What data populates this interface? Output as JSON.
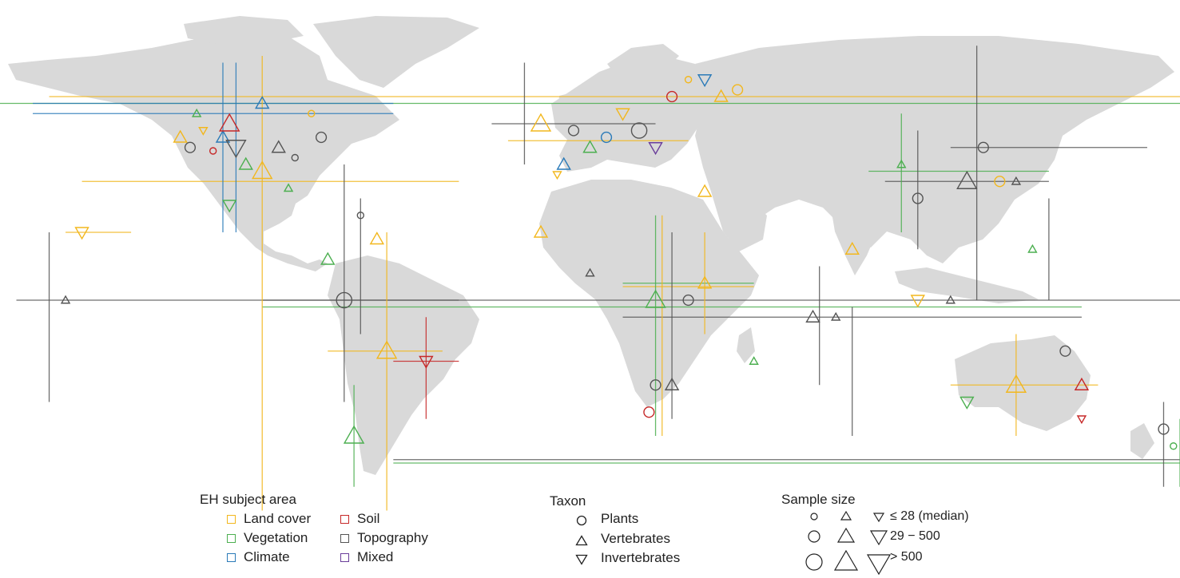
{
  "legend_subject": {
    "title": "EH subject area",
    "items": [
      {
        "label": "Land cover",
        "color": "#f2b71d"
      },
      {
        "label": "Vegetation",
        "color": "#4caf50"
      },
      {
        "label": "Climate",
        "color": "#2a7ab8"
      },
      {
        "label": "Soil",
        "color": "#c62828"
      },
      {
        "label": "Topography",
        "color": "#555555"
      },
      {
        "label": "Mixed",
        "color": "#6a3d9a"
      }
    ]
  },
  "legend_taxon": {
    "title": "Taxon",
    "items": [
      {
        "label": "Plants",
        "icon": "circle-icon"
      },
      {
        "label": "Vertebrates",
        "icon": "triangle-up-icon"
      },
      {
        "label": "Invertebrates",
        "icon": "triangle-down-icon"
      }
    ]
  },
  "legend_sample": {
    "title": "Sample size",
    "rows": [
      {
        "label": "≤ 28 (median)",
        "scale": 1
      },
      {
        "label": "29 − 500",
        "scale": 2
      },
      {
        "label": "> 500",
        "scale": 3
      }
    ]
  },
  "study_points": [
    {
      "lon": -125,
      "lat": 48,
      "taxon": "vertebrate",
      "subject": "Land cover",
      "size": 2
    },
    {
      "lon": -122,
      "lat": 45,
      "taxon": "plant",
      "subject": "Topography",
      "size": 2
    },
    {
      "lon": -120,
      "lat": 55,
      "taxon": "vertebrate",
      "subject": "Vegetation",
      "size": 1
    },
    {
      "lon": -118,
      "lat": 50,
      "taxon": "invertebrate",
      "subject": "Land cover",
      "size": 1
    },
    {
      "lon": -115,
      "lat": 44,
      "taxon": "plant",
      "subject": "Soil",
      "size": 1
    },
    {
      "lon": -112,
      "lat": 48,
      "taxon": "vertebrate",
      "subject": "Climate",
      "size": 2
    },
    {
      "lon": -110,
      "lat": 52,
      "taxon": "vertebrate",
      "subject": "Soil",
      "size": 3
    },
    {
      "lon": -108,
      "lat": 45,
      "taxon": "invertebrate",
      "subject": "Topography",
      "size": 3
    },
    {
      "lon": -105,
      "lat": 40,
      "taxon": "vertebrate",
      "subject": "Vegetation",
      "size": 2
    },
    {
      "lon": -100,
      "lat": 38,
      "taxon": "vertebrate",
      "subject": "Land cover",
      "size": 3
    },
    {
      "lon": -95,
      "lat": 45,
      "taxon": "vertebrate",
      "subject": "Topography",
      "size": 2
    },
    {
      "lon": -90,
      "lat": 42,
      "taxon": "plant",
      "subject": "Topography",
      "size": 1
    },
    {
      "lon": -85,
      "lat": 55,
      "taxon": "plant",
      "subject": "Land cover",
      "size": 1
    },
    {
      "lon": -82,
      "lat": 48,
      "taxon": "plant",
      "subject": "Topography",
      "size": 2
    },
    {
      "lon": -110,
      "lat": 28,
      "taxon": "invertebrate",
      "subject": "Vegetation",
      "size": 2
    },
    {
      "lon": -155,
      "lat": 20,
      "taxon": "invertebrate",
      "subject": "Land cover",
      "size": 2
    },
    {
      "lon": -160,
      "lat": 0,
      "taxon": "vertebrate",
      "subject": "Topography",
      "size": 1
    },
    {
      "lon": -80,
      "lat": 12,
      "taxon": "vertebrate",
      "subject": "Vegetation",
      "size": 2
    },
    {
      "lon": -75,
      "lat": 0,
      "taxon": "plant",
      "subject": "Topography",
      "size": 3
    },
    {
      "lon": -70,
      "lat": 25,
      "taxon": "plant",
      "subject": "Topography",
      "size": 1
    },
    {
      "lon": -65,
      "lat": 18,
      "taxon": "vertebrate",
      "subject": "Land cover",
      "size": 2
    },
    {
      "lon": -62,
      "lat": -15,
      "taxon": "vertebrate",
      "subject": "Land cover",
      "size": 3
    },
    {
      "lon": -50,
      "lat": -18,
      "taxon": "invertebrate",
      "subject": "Soil",
      "size": 2
    },
    {
      "lon": -72,
      "lat": -40,
      "taxon": "vertebrate",
      "subject": "Vegetation",
      "size": 3
    },
    {
      "lon": -15,
      "lat": 52,
      "taxon": "vertebrate",
      "subject": "Land cover",
      "size": 3
    },
    {
      "lon": -5,
      "lat": 50,
      "taxon": "plant",
      "subject": "Topography",
      "size": 2
    },
    {
      "lon": 0,
      "lat": 45,
      "taxon": "vertebrate",
      "subject": "Vegetation",
      "size": 2
    },
    {
      "lon": 5,
      "lat": 48,
      "taxon": "plant",
      "subject": "Climate",
      "size": 2
    },
    {
      "lon": 10,
      "lat": 55,
      "taxon": "invertebrate",
      "subject": "Land cover",
      "size": 2
    },
    {
      "lon": 15,
      "lat": 50,
      "taxon": "plant",
      "subject": "Topography",
      "size": 3
    },
    {
      "lon": 20,
      "lat": 45,
      "taxon": "invertebrate",
      "subject": "Mixed",
      "size": 2
    },
    {
      "lon": 25,
      "lat": 60,
      "taxon": "plant",
      "subject": "Soil",
      "size": 2
    },
    {
      "lon": 30,
      "lat": 65,
      "taxon": "plant",
      "subject": "Land cover",
      "size": 1
    },
    {
      "lon": 35,
      "lat": 32,
      "taxon": "vertebrate",
      "subject": "Land cover",
      "size": 2
    },
    {
      "lon": -15,
      "lat": 20,
      "taxon": "vertebrate",
      "subject": "Land cover",
      "size": 2
    },
    {
      "lon": 20,
      "lat": 0,
      "taxon": "vertebrate",
      "subject": "Vegetation",
      "size": 3
    },
    {
      "lon": 0,
      "lat": 8,
      "taxon": "vertebrate",
      "subject": "Topography",
      "size": 1
    },
    {
      "lon": 35,
      "lat": 5,
      "taxon": "vertebrate",
      "subject": "Land cover",
      "size": 2
    },
    {
      "lon": 30,
      "lat": 0,
      "taxon": "plant",
      "subject": "Topography",
      "size": 2
    },
    {
      "lon": 25,
      "lat": -25,
      "taxon": "vertebrate",
      "subject": "Topography",
      "size": 2
    },
    {
      "lon": 20,
      "lat": -25,
      "taxon": "plant",
      "subject": "Topography",
      "size": 2
    },
    {
      "lon": 18,
      "lat": -33,
      "taxon": "plant",
      "subject": "Soil",
      "size": 2
    },
    {
      "lon": 50,
      "lat": -18,
      "taxon": "vertebrate",
      "subject": "Vegetation",
      "size": 1
    },
    {
      "lon": 68,
      "lat": -5,
      "taxon": "vertebrate",
      "subject": "Topography",
      "size": 2
    },
    {
      "lon": 75,
      "lat": -5,
      "taxon": "vertebrate",
      "subject": "Topography",
      "size": 1
    },
    {
      "lon": 80,
      "lat": 15,
      "taxon": "vertebrate",
      "subject": "Land cover",
      "size": 2
    },
    {
      "lon": 95,
      "lat": 40,
      "taxon": "vertebrate",
      "subject": "Vegetation",
      "size": 1
    },
    {
      "lon": 100,
      "lat": 30,
      "taxon": "plant",
      "subject": "Topography",
      "size": 2
    },
    {
      "lon": 115,
      "lat": 35,
      "taxon": "vertebrate",
      "subject": "Topography",
      "size": 3
    },
    {
      "lon": 120,
      "lat": 45,
      "taxon": "plant",
      "subject": "Topography",
      "size": 2
    },
    {
      "lon": 125,
      "lat": 35,
      "taxon": "plant",
      "subject": "Land cover",
      "size": 2
    },
    {
      "lon": 130,
      "lat": 35,
      "taxon": "vertebrate",
      "subject": "Topography",
      "size": 1
    },
    {
      "lon": 135,
      "lat": 15,
      "taxon": "vertebrate",
      "subject": "Vegetation",
      "size": 1
    },
    {
      "lon": 110,
      "lat": 0,
      "taxon": "vertebrate",
      "subject": "Topography",
      "size": 1
    },
    {
      "lon": 100,
      "lat": 0,
      "taxon": "invertebrate",
      "subject": "Land cover",
      "size": 2
    },
    {
      "lon": 130,
      "lat": -25,
      "taxon": "vertebrate",
      "subject": "Land cover",
      "size": 3
    },
    {
      "lon": 150,
      "lat": -25,
      "taxon": "vertebrate",
      "subject": "Soil",
      "size": 2
    },
    {
      "lon": 115,
      "lat": -30,
      "taxon": "invertebrate",
      "subject": "Vegetation",
      "size": 2
    },
    {
      "lon": 145,
      "lat": -15,
      "taxon": "plant",
      "subject": "Topography",
      "size": 2
    },
    {
      "lon": 150,
      "lat": -35,
      "taxon": "invertebrate",
      "subject": "Soil",
      "size": 1
    },
    {
      "lon": 175,
      "lat": -38,
      "taxon": "plant",
      "subject": "Topography",
      "size": 2
    },
    {
      "lon": 178,
      "lat": -43,
      "taxon": "plant",
      "subject": "Vegetation",
      "size": 1
    },
    {
      "lon": 35,
      "lat": 65,
      "taxon": "invertebrate",
      "subject": "Climate",
      "size": 2
    },
    {
      "lon": 40,
      "lat": 60,
      "taxon": "vertebrate",
      "subject": "Land cover",
      "size": 2
    },
    {
      "lon": 45,
      "lat": 62,
      "taxon": "plant",
      "subject": "Land cover",
      "size": 2
    },
    {
      "lon": -8,
      "lat": 40,
      "taxon": "vertebrate",
      "subject": "Climate",
      "size": 2
    },
    {
      "lon": -10,
      "lat": 37,
      "taxon": "invertebrate",
      "subject": "Land cover",
      "size": 1
    },
    {
      "lon": -100,
      "lat": 58,
      "taxon": "vertebrate",
      "subject": "Climate",
      "size": 2
    },
    {
      "lon": -92,
      "lat": 33,
      "taxon": "vertebrate",
      "subject": "Vegetation",
      "size": 1
    }
  ],
  "extent_lines": [
    {
      "dir": "h",
      "lat": 58,
      "lon1": -180,
      "lon2": 180,
      "subject": "Vegetation"
    },
    {
      "dir": "h",
      "lat": 60,
      "lon1": -165,
      "lon2": 180,
      "subject": "Land cover"
    },
    {
      "dir": "h",
      "lat": 58,
      "lon1": -170,
      "lon2": -60,
      "subject": "Climate"
    },
    {
      "dir": "h",
      "lat": 55,
      "lon1": -170,
      "lon2": -60,
      "subject": "Climate"
    },
    {
      "dir": "h",
      "lat": 35,
      "lon1": -155,
      "lon2": -40,
      "subject": "Land cover"
    },
    {
      "dir": "h",
      "lat": 20,
      "lon1": -160,
      "lon2": -140,
      "subject": "Land cover"
    },
    {
      "dir": "h",
      "lat": 0,
      "lon1": -175,
      "lon2": 180,
      "subject": "Topography"
    },
    {
      "dir": "h",
      "lat": 0,
      "lon1": -100,
      "lon2": -40,
      "subject": "Topography"
    },
    {
      "dir": "h",
      "lat": -2,
      "lon1": -100,
      "lon2": 150,
      "subject": "Vegetation"
    },
    {
      "dir": "h",
      "lat": -5,
      "lon1": 10,
      "lon2": 150,
      "subject": "Topography"
    },
    {
      "dir": "h",
      "lat": -15,
      "lon1": -80,
      "lon2": -45,
      "subject": "Land cover"
    },
    {
      "dir": "h",
      "lat": -18,
      "lon1": -60,
      "lon2": -40,
      "subject": "Soil"
    },
    {
      "dir": "h",
      "lat": -48,
      "lon1": -60,
      "lon2": 180,
      "subject": "Vegetation"
    },
    {
      "dir": "h",
      "lat": -47,
      "lon1": -60,
      "lon2": 180,
      "subject": "Topography"
    },
    {
      "dir": "h",
      "lat": -25,
      "lon1": 110,
      "lon2": 155,
      "subject": "Land cover"
    },
    {
      "dir": "h",
      "lat": 38,
      "lon1": 85,
      "lon2": 140,
      "subject": "Vegetation"
    },
    {
      "dir": "h",
      "lat": 35,
      "lon1": 90,
      "lon2": 140,
      "subject": "Topography"
    },
    {
      "dir": "h",
      "lat": 45,
      "lon1": 110,
      "lon2": 170,
      "subject": "Topography"
    },
    {
      "dir": "h",
      "lat": 4,
      "lon1": 10,
      "lon2": 50,
      "subject": "Land cover"
    },
    {
      "dir": "h",
      "lat": 5,
      "lon1": 10,
      "lon2": 50,
      "subject": "Vegetation"
    },
    {
      "dir": "h",
      "lat": 52,
      "lon1": -30,
      "lon2": 20,
      "subject": "Topography"
    },
    {
      "dir": "h",
      "lat": 47,
      "lon1": -25,
      "lon2": 30,
      "subject": "Land cover"
    },
    {
      "dir": "v",
      "lon": -100,
      "lat1": 72,
      "lat2": -62,
      "subject": "Land cover"
    },
    {
      "dir": "v",
      "lon": -112,
      "lat1": 70,
      "lat2": 20,
      "subject": "Climate"
    },
    {
      "dir": "v",
      "lon": -108,
      "lat1": 70,
      "lat2": 20,
      "subject": "Climate"
    },
    {
      "dir": "v",
      "lon": -62,
      "lat1": 20,
      "lat2": -62,
      "subject": "Land cover"
    },
    {
      "dir": "v",
      "lon": -75,
      "lat1": 40,
      "lat2": -30,
      "subject": "Topography"
    },
    {
      "dir": "v",
      "lon": -70,
      "lat1": 30,
      "lat2": -10,
      "subject": "Topography"
    },
    {
      "dir": "v",
      "lon": -165,
      "lat1": 20,
      "lat2": -30,
      "subject": "Topography"
    },
    {
      "dir": "v",
      "lon": 20,
      "lat1": 25,
      "lat2": -40,
      "subject": "Vegetation"
    },
    {
      "dir": "v",
      "lon": 22,
      "lat1": 25,
      "lat2": -40,
      "subject": "Land cover"
    },
    {
      "dir": "v",
      "lon": 25,
      "lat1": 20,
      "lat2": -35,
      "subject": "Topography"
    },
    {
      "dir": "v",
      "lon": 95,
      "lat1": 55,
      "lat2": 20,
      "subject": "Vegetation"
    },
    {
      "dir": "v",
      "lon": 118,
      "lat1": 75,
      "lat2": 0,
      "subject": "Topography"
    },
    {
      "dir": "v",
      "lon": 130,
      "lat1": -10,
      "lat2": -40,
      "subject": "Land cover"
    },
    {
      "dir": "v",
      "lon": 100,
      "lat1": 50,
      "lat2": 15,
      "subject": "Topography"
    },
    {
      "dir": "v",
      "lon": 80,
      "lat1": -2,
      "lat2": -40,
      "subject": "Topography"
    },
    {
      "dir": "v",
      "lon": 70,
      "lat1": 10,
      "lat2": -25,
      "subject": "Topography"
    },
    {
      "dir": "v",
      "lon": 175,
      "lat1": -30,
      "lat2": -55,
      "subject": "Topography"
    },
    {
      "dir": "v",
      "lon": 180,
      "lat1": -35,
      "lat2": -55,
      "subject": "Vegetation"
    },
    {
      "dir": "v",
      "lon": -50,
      "lat1": -5,
      "lat2": -35,
      "subject": "Soil"
    },
    {
      "dir": "v",
      "lon": -72,
      "lat1": -25,
      "lat2": -55,
      "subject": "Vegetation"
    },
    {
      "dir": "v",
      "lon": -20,
      "lat1": 70,
      "lat2": 40,
      "subject": "Topography"
    },
    {
      "dir": "v",
      "lon": 35,
      "lat1": 20,
      "lat2": -10,
      "subject": "Land cover"
    },
    {
      "dir": "v",
      "lon": 140,
      "lat1": 30,
      "lat2": 0,
      "subject": "Topography"
    }
  ]
}
